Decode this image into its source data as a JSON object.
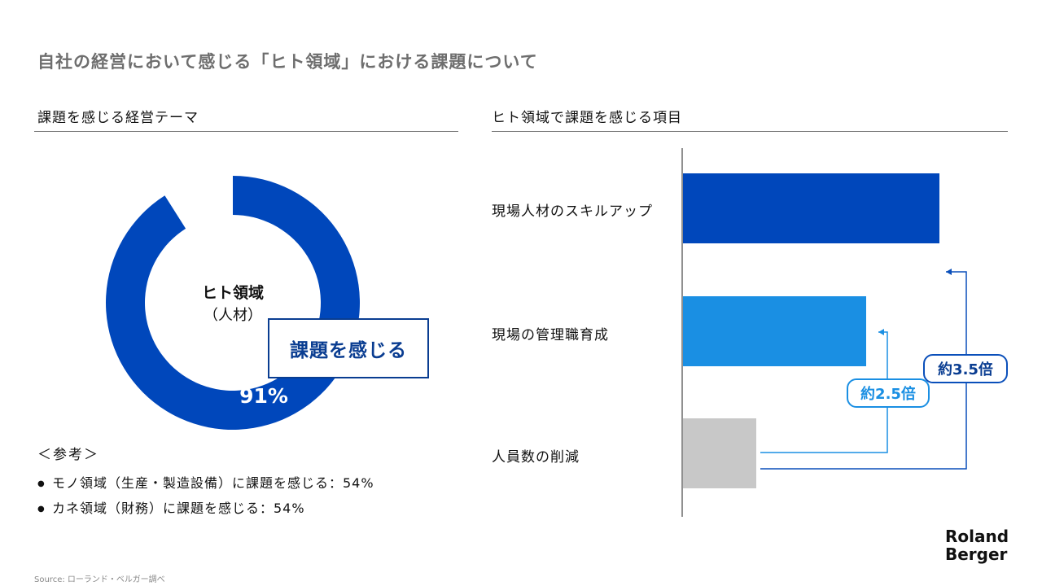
{
  "title": "自社の経営において感じる「ヒト領域」における課題について",
  "left": {
    "section_title": "課題を感じる経営テーマ",
    "center_label": "ヒト領域",
    "center_sub": "（人材）",
    "callout": "課題を感じる",
    "percent_label": "91%",
    "reference_heading": "＜参考＞",
    "references": [
      "モノ領域（生産・製造設備）に課題を感じる：54%",
      "カネ領域（財務）に課題を感じる：54%"
    ]
  },
  "right": {
    "section_title": "ヒト領域で課題を感じる項目",
    "badges": [
      "約2.5倍",
      "約3.5倍"
    ]
  },
  "colors": {
    "dark_blue": "#0047bb",
    "light_blue": "#1a8fe3",
    "gray": "#c8c8c8",
    "navy": "#0a3d91"
  },
  "chart_data": [
    {
      "type": "pie",
      "title": "課題を感じる経営テーマ",
      "slices": [
        {
          "label": "ヒト領域（人材）課題を感じる",
          "value": 91
        },
        {
          "label": "",
          "value": 9
        }
      ]
    },
    {
      "type": "bar",
      "orientation": "horizontal",
      "title": "ヒト領域で課題を感じる項目",
      "categories": [
        "現場人材のスキルアップ",
        "現場の管理職育成",
        "人員数の削減"
      ],
      "values": [
        3.5,
        2.5,
        1
      ],
      "annotations": [
        "約3.5倍",
        "約2.5倍"
      ]
    }
  ],
  "logo": {
    "line1": "Roland",
    "line2": "Berger"
  },
  "source": "Source: ローランド・ベルガー調べ"
}
